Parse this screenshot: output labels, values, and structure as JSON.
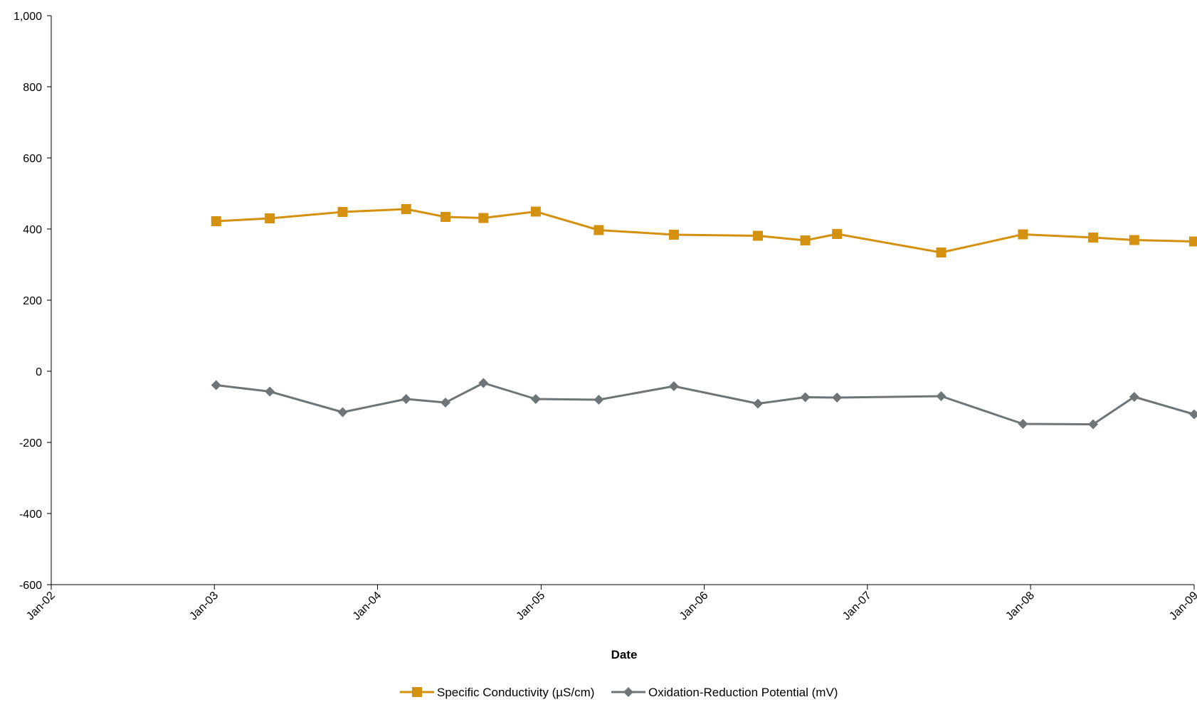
{
  "chart_data": {
    "type": "line",
    "title": "",
    "xlabel": "Date",
    "ylabel": "",
    "x_axis_type": "date",
    "xlim": [
      "2002-01-01",
      "2009-01-01"
    ],
    "ylim": [
      -600,
      1000
    ],
    "y_ticks": [
      -600,
      -400,
      -200,
      0,
      200,
      400,
      600,
      800,
      1000
    ],
    "y_tick_labels": [
      "-600",
      "-400",
      "-200",
      "0",
      "200",
      "400",
      "600",
      "800",
      "1,000"
    ],
    "x_ticks": [
      "2002-01-01",
      "2003-01-01",
      "2004-01-01",
      "2005-01-01",
      "2006-01-01",
      "2007-01-01",
      "2008-01-01",
      "2009-01-01"
    ],
    "x_tick_labels": [
      "Jan-02",
      "Jan-03",
      "Jan-04",
      "Jan-05",
      "Jan-06",
      "Jan-07",
      "Jan-08",
      "Jan-09"
    ],
    "grid": false,
    "legend_position": "bottom-center",
    "series": [
      {
        "name": "Specific Conductivity (µS/cm)",
        "color": "#D4900F",
        "marker": "square",
        "x": [
          "2003-01-05",
          "2003-05-05",
          "2003-10-15",
          "2004-03-05",
          "2004-06-01",
          "2004-08-25",
          "2004-12-20",
          "2005-05-10",
          "2005-10-25",
          "2006-05-01",
          "2006-08-15",
          "2006-10-25",
          "2007-06-15",
          "2007-12-15",
          "2008-05-20",
          "2008-08-20",
          "2009-01-01"
        ],
        "values": [
          422,
          430,
          448,
          456,
          434,
          431,
          449,
          397,
          384,
          381,
          368,
          386,
          334,
          385,
          376,
          369,
          365
        ]
      },
      {
        "name": "Oxidation-Reduction Potential (mV)",
        "color": "#6D7579",
        "marker": "diamond",
        "x": [
          "2003-01-05",
          "2003-05-05",
          "2003-10-15",
          "2004-03-05",
          "2004-06-01",
          "2004-08-25",
          "2004-12-20",
          "2005-05-10",
          "2005-10-25",
          "2006-05-01",
          "2006-08-15",
          "2006-10-25",
          "2007-06-15",
          "2007-12-15",
          "2008-05-20",
          "2008-08-20",
          "2009-01-01"
        ],
        "values": [
          -39,
          -57,
          -115,
          -78,
          -88,
          -33,
          -78,
          -80,
          -42,
          -91,
          -73,
          -74,
          -70,
          -148,
          -149,
          -72,
          -121
        ]
      }
    ]
  }
}
